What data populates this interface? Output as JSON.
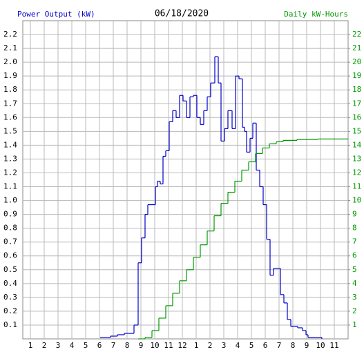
{
  "chart_data": {
    "type": "step",
    "title": "06/18/2020",
    "y_label": "Power Output (kW)",
    "y2_label": "Daily kW-Hours",
    "xlim": [
      0.45,
      24
    ],
    "xticks": [
      {
        "value": 1,
        "label": "1"
      },
      {
        "value": 2,
        "label": "2"
      },
      {
        "value": 3,
        "label": "3"
      },
      {
        "value": 4,
        "label": "4"
      },
      {
        "value": 5,
        "label": "5"
      },
      {
        "value": 6,
        "label": "6"
      },
      {
        "value": 7,
        "label": "7"
      },
      {
        "value": 8,
        "label": "8"
      },
      {
        "value": 9,
        "label": "9"
      },
      {
        "value": 10,
        "label": "10"
      },
      {
        "value": 11,
        "label": "11"
      },
      {
        "value": 12,
        "label": "12"
      },
      {
        "value": 13,
        "label": "1"
      },
      {
        "value": 14,
        "label": "2"
      },
      {
        "value": 15,
        "label": "3"
      },
      {
        "value": 16,
        "label": "4"
      },
      {
        "value": 17,
        "label": "5"
      },
      {
        "value": 18,
        "label": "6"
      },
      {
        "value": 19,
        "label": "7"
      },
      {
        "value": 20,
        "label": "8"
      },
      {
        "value": 21,
        "label": "9"
      },
      {
        "value": 22,
        "label": "10"
      },
      {
        "value": 23,
        "label": "11"
      }
    ],
    "ylim": [
      0,
      2.3
    ],
    "yticks": [
      0.1,
      0.2,
      0.3,
      0.4,
      0.5,
      0.6,
      0.7,
      0.8,
      0.9,
      {
        "value": 1,
        "label": "1.0"
      },
      1.1,
      1.2,
      1.3,
      1.4,
      1.5,
      1.6,
      1.7,
      1.8,
      1.9,
      {
        "value": 2,
        "label": "2.0"
      },
      2.1,
      2.2
    ],
    "y2lim": [
      0,
      23
    ],
    "y2ticks": [
      1,
      2,
      3,
      4,
      5,
      6,
      7,
      8,
      9,
      10,
      11,
      12,
      13,
      14,
      15,
      16,
      17,
      18,
      19,
      20,
      21,
      22
    ],
    "grid": true,
    "series": [
      {
        "color": "#0000cc",
        "x": [
          6.05,
          6.8,
          7.3,
          7.8,
          8.5,
          8.8,
          9.05,
          9.3,
          9.5,
          10.05,
          10.2,
          10.4,
          10.6,
          10.8,
          11.05,
          11.3,
          11.55,
          11.8,
          12.05,
          12.3,
          12.55,
          12.8,
          13.05,
          13.3,
          13.55,
          13.8,
          14.05,
          14.35,
          14.6,
          14.8,
          15.05,
          15.3,
          15.6,
          15.85,
          16.1,
          16.35,
          16.5,
          16.65,
          16.9,
          17.1,
          17.35,
          17.6,
          17.85,
          18.1,
          18.35,
          18.6,
          18.85,
          19.1,
          19.35,
          19.6,
          19.85,
          20.35,
          20.7,
          20.95,
          21.1,
          22.1
        ],
        "values": [
          0.01,
          0.02,
          0.03,
          0.04,
          0.1,
          0.55,
          0.73,
          0.9,
          0.97,
          1.1,
          1.14,
          1.12,
          1.32,
          1.36,
          1.57,
          1.65,
          1.6,
          1.76,
          1.72,
          1.6,
          1.75,
          1.76,
          1.6,
          1.55,
          1.65,
          1.75,
          1.85,
          2.04,
          1.85,
          1.43,
          1.52,
          1.65,
          1.52,
          1.9,
          1.88,
          1.53,
          1.5,
          1.35,
          1.45,
          1.56,
          1.22,
          1.1,
          0.97,
          0.72,
          0.46,
          0.51,
          0.51,
          0.32,
          0.26,
          0.14,
          0.09,
          0.08,
          0.06,
          0.03,
          0.01,
          0
        ]
      },
      {
        "color": "#009900",
        "axis": "y2",
        "x": [
          8.8,
          9.3,
          9.8,
          10.3,
          10.8,
          11.3,
          11.8,
          12.3,
          12.8,
          13.3,
          13.8,
          14.3,
          14.8,
          15.3,
          15.8,
          16.3,
          16.8,
          17.3,
          17.8,
          18.3,
          18.8,
          19.3,
          20.3,
          21.8,
          24
        ],
        "values": [
          0,
          0.1,
          0.6,
          1.5,
          2.4,
          3.3,
          4.2,
          5.0,
          5.9,
          6.8,
          7.8,
          8.9,
          9.8,
          10.6,
          11.4,
          12.2,
          12.8,
          13.4,
          13.8,
          14.1,
          14.25,
          14.35,
          14.42,
          14.45,
          14.45
        ]
      }
    ]
  }
}
